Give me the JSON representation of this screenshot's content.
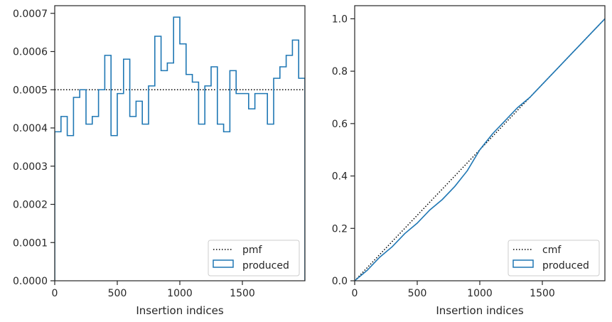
{
  "chart_data": [
    {
      "type": "line",
      "step": true,
      "xlabel": "Insertion indices",
      "ylabel": "",
      "xlim": [
        0,
        2000
      ],
      "ylim": [
        0,
        0.00072
      ],
      "xticks": [
        0,
        500,
        1000,
        1500
      ],
      "xtick_labels": [
        "0",
        "500",
        "1000",
        "1500"
      ],
      "yticks": [
        0,
        0.0001,
        0.0002,
        0.0003,
        0.0004,
        0.0005,
        0.0006,
        0.0007
      ],
      "ytick_labels": [
        "0.0000",
        "0.0001",
        "0.0002",
        "0.0003",
        "0.0004",
        "0.0005",
        "0.0006",
        "0.0007"
      ],
      "grid": false,
      "legend": "bottom-right",
      "series": [
        {
          "name": "pmf",
          "style": "dotted",
          "color": "#000000",
          "x": [
            0,
            2000
          ],
          "y": [
            0.0005,
            0.0005
          ]
        },
        {
          "name": "produced",
          "style": "step",
          "color": "#1f77b4",
          "bin_edges": [
            0,
            50,
            100,
            150,
            200,
            250,
            300,
            350,
            400,
            450,
            500,
            550,
            600,
            650,
            700,
            750,
            800,
            850,
            900,
            950,
            1000,
            1050,
            1100,
            1150,
            1200,
            1250,
            1300,
            1350,
            1400,
            1450,
            1500,
            1550,
            1600,
            1650,
            1700,
            1750,
            1800,
            1850,
            1900,
            1950,
            2000
          ],
          "values": [
            0.00039,
            0.00043,
            0.00038,
            0.00048,
            0.0005,
            0.00041,
            0.00043,
            0.0005,
            0.00059,
            0.00038,
            0.00049,
            0.00058,
            0.00043,
            0.00047,
            0.00041,
            0.00051,
            0.00064,
            0.00055,
            0.00057,
            0.00069,
            0.00062,
            0.00054,
            0.00052,
            0.00041,
            0.00051,
            0.00056,
            0.00041,
            0.00039,
            0.00055,
            0.00049,
            0.00049,
            0.00045,
            0.00049,
            0.00049,
            0.00041,
            0.00053,
            0.00056,
            0.00059,
            0.00063,
            0.00053
          ]
        }
      ]
    },
    {
      "type": "line",
      "step": true,
      "xlabel": "Insertion indices",
      "ylabel": "",
      "xlim": [
        0,
        2000
      ],
      "ylim": [
        0,
        1.05
      ],
      "xticks": [
        0,
        500,
        1000,
        1500
      ],
      "xtick_labels": [
        "0",
        "500",
        "1000",
        "1500"
      ],
      "yticks": [
        0,
        0.2,
        0.4,
        0.6,
        0.8,
        1.0
      ],
      "ytick_labels": [
        "0.0",
        "0.2",
        "0.4",
        "0.6",
        "0.8",
        "1.0"
      ],
      "grid": false,
      "legend": "bottom-right",
      "series": [
        {
          "name": "cmf",
          "style": "dotted",
          "color": "#000000",
          "x": [
            0,
            2000
          ],
          "y": [
            0,
            1
          ]
        },
        {
          "name": "produced",
          "style": "line",
          "color": "#1f77b4",
          "x": [
            0,
            100,
            200,
            300,
            400,
            500,
            600,
            700,
            800,
            900,
            1000,
            1100,
            1200,
            1300,
            1400,
            1500,
            1600,
            1700,
            1800,
            1900,
            2000
          ],
          "y": [
            0,
            0.04,
            0.09,
            0.13,
            0.18,
            0.22,
            0.27,
            0.31,
            0.36,
            0.42,
            0.5,
            0.56,
            0.61,
            0.66,
            0.7,
            0.75,
            0.8,
            0.85,
            0.9,
            0.95,
            1.0
          ]
        }
      ]
    }
  ]
}
